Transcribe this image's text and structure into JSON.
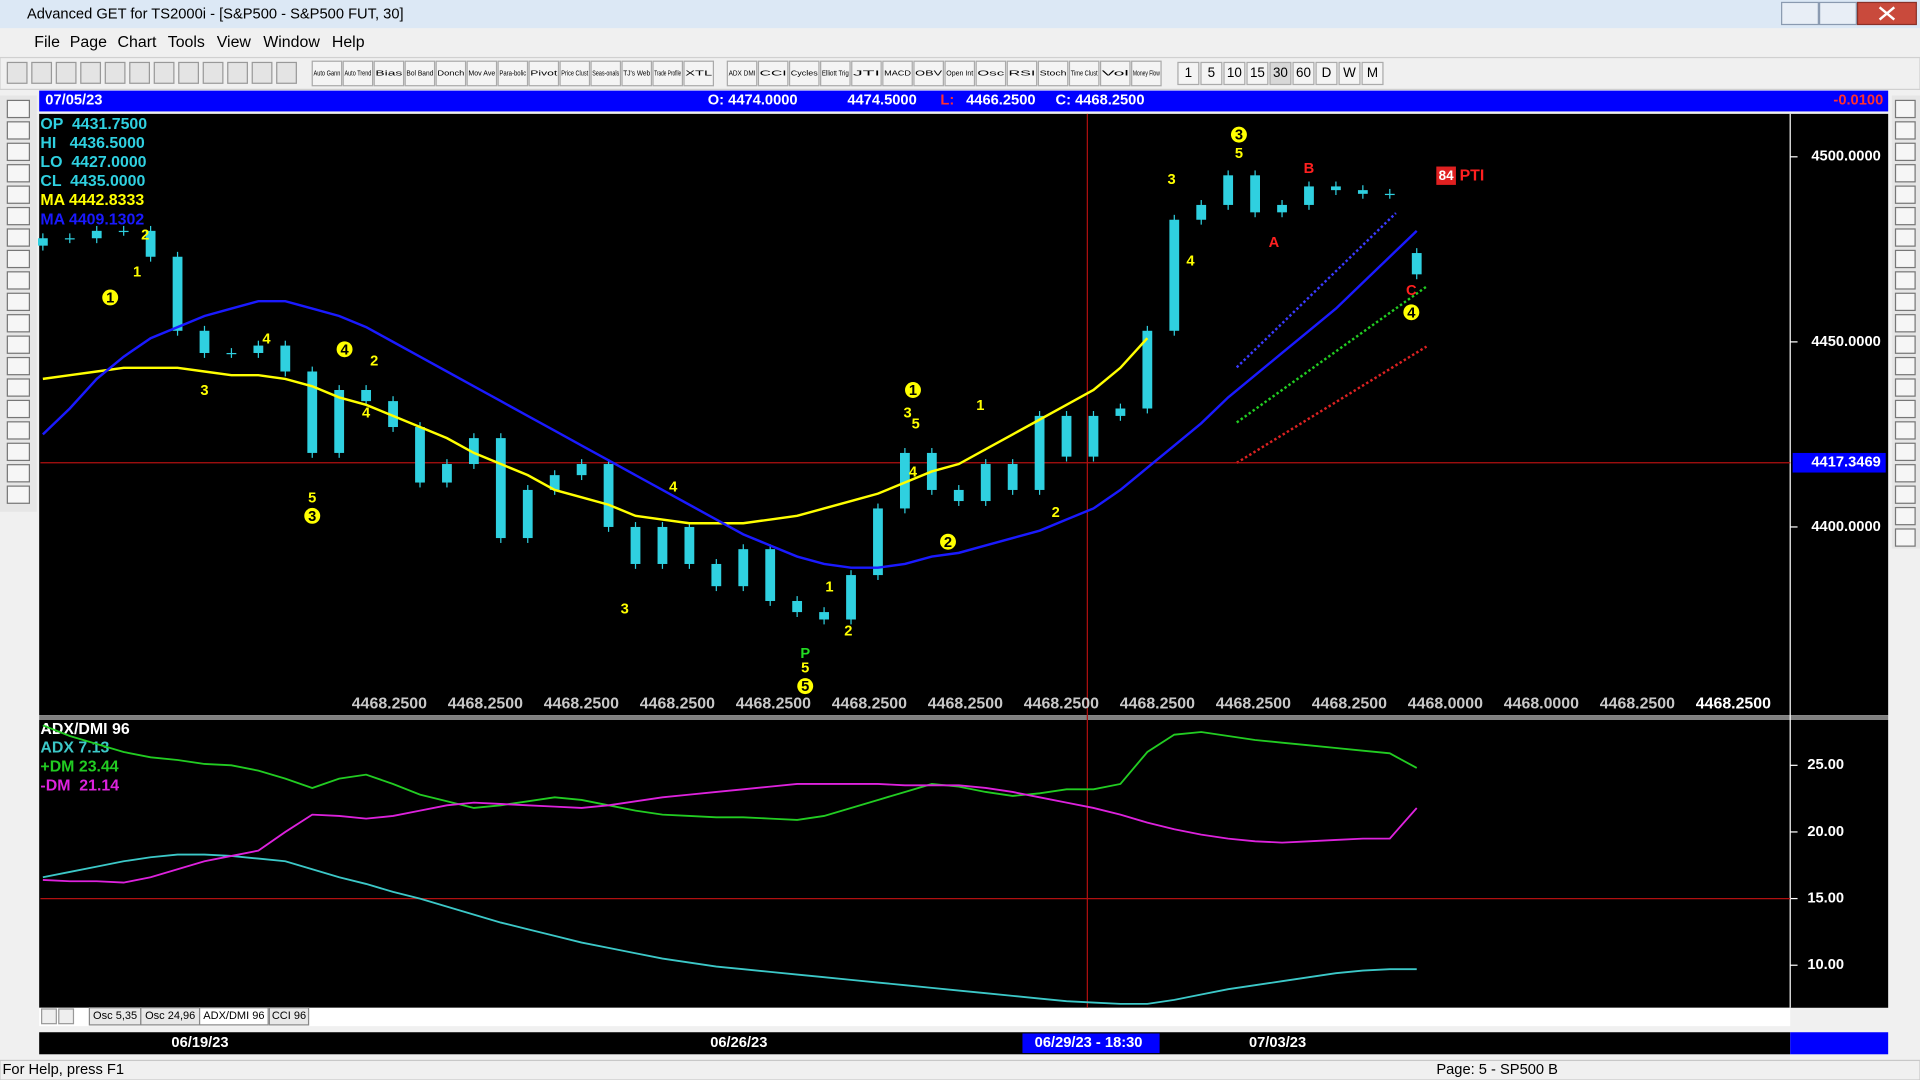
{
  "window": {
    "title": "Advanced GET for TS2000i - [S&P500 - S&P500 FUT, 30]"
  },
  "menu": [
    "File",
    "Page",
    "Chart",
    "Tools",
    "View",
    "Window",
    "Help"
  ],
  "toolbar": [
    "Auto Gann",
    "Auto Trend",
    "Bias",
    "Bol Band",
    "Donch",
    "Mov Ave",
    "Para-bolic",
    "Pivot",
    "Price Clust",
    "Seas-onals",
    "TJ's Web",
    "Trade Profile",
    "XTL",
    "ADX DMI",
    "CCI",
    "Cycles",
    "Elliott Trig",
    "JTI",
    "MACD",
    "OBV",
    "Open Int",
    "Osc",
    "RSI",
    "Stoch",
    "Time Clust",
    "Vol",
    "Money Flow"
  ],
  "intervals": [
    "1",
    "5",
    "10",
    "15",
    "30",
    "60",
    "D",
    "W",
    "M"
  ],
  "infobar": {
    "date": "07/05/23",
    "open": "O: 4474.0000",
    "high": "4474.5000",
    "low_label": "L:",
    "low": "4466.2500",
    "close": "C: 4468.2500",
    "change": "-0.0100"
  },
  "chart_data": [
    {
      "type": "candlestick",
      "color": "#2fd0e0",
      "categories": [
        null,
        null,
        null,
        null,
        null,
        "06/19/23",
        null,
        null,
        null,
        null,
        null,
        null,
        null,
        null,
        null,
        null,
        null,
        null,
        null,
        null,
        null,
        null,
        null,
        null,
        null,
        "06/26/23",
        null,
        null,
        null,
        null,
        null,
        null,
        null,
        null,
        null,
        null,
        null,
        null,
        null,
        "06/29/23 - 18:30",
        null,
        null,
        null,
        null,
        null,
        "07/03/23",
        null,
        null,
        null,
        null,
        null,
        null
      ],
      "open": [
        4476,
        4478,
        4478,
        4480,
        4480,
        4473,
        4453,
        4447,
        4447,
        4449,
        4442,
        4420,
        4437,
        4434,
        4427,
        4412,
        4417,
        4424,
        4397,
        4410,
        4414,
        4417,
        4400,
        4390,
        4400,
        4390,
        4384,
        4394,
        4380,
        4377,
        4375,
        4387,
        4405,
        4420,
        4410,
        4407,
        4417,
        4410,
        4430,
        4419,
        4430,
        4432,
        4453,
        4483,
        4487,
        4495,
        4485,
        4487,
        4492,
        4491,
        4490,
        4474
      ],
      "close": [
        4478,
        4478,
        4480,
        4480,
        4473,
        4453,
        4447,
        4447,
        4449,
        4442,
        4420,
        4437,
        4434,
        4427,
        4412,
        4417,
        4424,
        4397,
        4410,
        4414,
        4417,
        4400,
        4390,
        4400,
        4390,
        4384,
        4394,
        4380,
        4377,
        4375,
        4387,
        4405,
        4420,
        4410,
        4407,
        4417,
        4410,
        4430,
        4419,
        4430,
        4432,
        4453,
        4483,
        4487,
        4495,
        4485,
        4487,
        4492,
        4491,
        4490,
        4490,
        4468.25
      ],
      "series": [
        {
          "name": "MA 4442.8333",
          "color": "#ffff00",
          "values": [
            4440,
            4441,
            4442,
            4443,
            4443,
            4443,
            4442,
            4441,
            4441,
            4440,
            4438,
            4435,
            4433,
            4430,
            4427,
            4424,
            4420,
            4417,
            4414,
            4410,
            4408,
            4406,
            4403,
            4402,
            4401,
            4401,
            4401,
            4402,
            4403,
            4405,
            4407,
            4409,
            4412,
            4415,
            4417,
            4421,
            4425,
            4429,
            4433,
            4437,
            4443,
            4451,
            null,
            null,
            null,
            null,
            null,
            null,
            null,
            null,
            null,
            null
          ]
        },
        {
          "name": "MA 4409.1302",
          "color": "#1a1aff",
          "values": [
            4425,
            4432,
            4440,
            4446,
            4451,
            4454,
            4457,
            4459,
            4461,
            4461,
            4459,
            4457,
            4454,
            4450,
            4446,
            4442,
            4438,
            4434,
            4430,
            4426,
            4422,
            4418,
            4414,
            4410,
            4406,
            4402,
            4398,
            4395,
            4392,
            4390,
            4389,
            4389,
            4390,
            4392,
            4393,
            4395,
            4397,
            4399,
            4402,
            4405,
            4410,
            4416,
            4422,
            4428,
            4435,
            4441,
            4447,
            4453,
            4459,
            4466,
            4473,
            4480
          ]
        }
      ],
      "readouts": [
        "OP  4431.7500",
        "HI   4436.5000",
        "LO  4427.0000",
        "CL  4435.0000"
      ],
      "ylim": [
        4349.5,
        4511.6
      ],
      "yticks": [
        {
          "value": 4400,
          "label": "4400.0000"
        },
        {
          "value": 4450,
          "label": "4450.0000"
        },
        {
          "value": 4500,
          "label": "4500.0000"
        }
      ],
      "cursor": {
        "value": 4417.3469,
        "label": "4417.3469"
      },
      "bottom_values": [
        "4468.2500",
        "4468.2500",
        "4468.2500",
        "4468.2500",
        "4468.2500",
        "4468.2500",
        "4468.2500",
        "4468.2500",
        "4468.2500",
        "4468.2500",
        "4468.2500",
        "4468.0000",
        "4468.0000",
        "4468.2500",
        "4468.2500"
      ],
      "pti_value": 84,
      "pti_label": "PTI",
      "wave_labels": [
        {
          "text": "1",
          "x": 2.5,
          "y": 4462,
          "circled": true
        },
        {
          "text": "2",
          "x": 3.8,
          "y": 4479
        },
        {
          "text": "1",
          "x": 3.5,
          "y": 4469
        },
        {
          "text": "4",
          "x": 8.3,
          "y": 4451
        },
        {
          "text": "3",
          "x": 6.0,
          "y": 4437
        },
        {
          "text": "4",
          "x": 11.2,
          "y": 4448,
          "circled": true
        },
        {
          "text": "2",
          "x": 12.3,
          "y": 4445
        },
        {
          "text": "4",
          "x": 12.0,
          "y": 4431
        },
        {
          "text": "5",
          "x": 10.0,
          "y": 4408
        },
        {
          "text": "3",
          "x": 10.0,
          "y": 4403,
          "circled": true
        },
        {
          "text": "4",
          "x": 23.4,
          "y": 4411
        },
        {
          "text": "3",
          "x": 21.6,
          "y": 4378
        },
        {
          "text": "1",
          "x": 32.3,
          "y": 4437,
          "circled": true
        },
        {
          "text": "3",
          "x": 32.1,
          "y": 4431
        },
        {
          "text": "5",
          "x": 32.4,
          "y": 4428
        },
        {
          "text": "4",
          "x": 32.3,
          "y": 4415
        },
        {
          "text": "1",
          "x": 34.8,
          "y": 4433
        },
        {
          "text": "2",
          "x": 33.6,
          "y": 4396,
          "circled": true
        },
        {
          "text": "2",
          "x": 37.6,
          "y": 4404
        },
        {
          "text": "1",
          "x": 29.2,
          "y": 4384
        },
        {
          "text": "2",
          "x": 29.9,
          "y": 4372
        },
        {
          "text": "P",
          "x": 28.3,
          "y": 4366,
          "color": "#22dd22"
        },
        {
          "text": "5",
          "x": 28.3,
          "y": 4362
        },
        {
          "text": "5",
          "x": 28.3,
          "y": 4357,
          "circled": true
        },
        {
          "text": "3",
          "x": 41.9,
          "y": 4494
        },
        {
          "text": "4",
          "x": 42.6,
          "y": 4472
        },
        {
          "text": "3",
          "x": 44.4,
          "y": 4506,
          "circled": true
        },
        {
          "text": "5",
          "x": 44.4,
          "y": 4501
        },
        {
          "text": "B",
          "x": 47.0,
          "y": 4497,
          "color": "#ff2020"
        },
        {
          "text": "A",
          "x": 45.7,
          "y": 4477,
          "color": "#ff2020"
        },
        {
          "text": "C",
          "x": 50.8,
          "y": 4464,
          "color": "#ff2020"
        },
        {
          "text": "4",
          "x": 50.8,
          "y": 4458,
          "circled": true
        }
      ]
    },
    {
      "type": "line",
      "title": "ADX/DMI 96",
      "series": [
        {
          "name": "ADX 7.13",
          "color": "#3cc8c8",
          "values": [
            16.6,
            17.0,
            17.4,
            17.8,
            18.1,
            18.3,
            18.3,
            18.2,
            18.0,
            17.8,
            17.2,
            16.6,
            16.1,
            15.5,
            15.0,
            14.4,
            13.8,
            13.2,
            12.7,
            12.2,
            11.7,
            11.3,
            10.9,
            10.5,
            10.2,
            9.9,
            9.7,
            9.5,
            9.3,
            9.1,
            8.9,
            8.7,
            8.5,
            8.3,
            8.1,
            7.9,
            7.7,
            7.5,
            7.3,
            7.2,
            7.1,
            7.1,
            7.4,
            7.8,
            8.2,
            8.5,
            8.8,
            9.1,
            9.4,
            9.6,
            9.7,
            9.7
          ]
        },
        {
          "name": "+DM 23.44",
          "color": "#22cc22",
          "values": [
            28.0,
            27.2,
            26.6,
            26.0,
            25.6,
            25.4,
            25.1,
            25.0,
            24.6,
            24.0,
            23.3,
            24.0,
            24.3,
            23.6,
            22.8,
            22.3,
            21.8,
            22.0,
            22.3,
            22.6,
            22.4,
            22.0,
            21.6,
            21.3,
            21.2,
            21.1,
            21.1,
            21.0,
            20.9,
            21.2,
            21.8,
            22.4,
            23.0,
            23.6,
            23.4,
            23.0,
            22.7,
            22.9,
            23.2,
            23.2,
            23.6,
            26.0,
            27.3,
            27.5,
            27.2,
            26.9,
            26.7,
            26.5,
            26.3,
            26.1,
            25.9,
            24.8
          ]
        },
        {
          "name": "-DM  21.14",
          "color": "#dd22dd",
          "values": [
            16.4,
            16.3,
            16.3,
            16.2,
            16.6,
            17.2,
            17.8,
            18.2,
            18.6,
            20.0,
            21.3,
            21.2,
            21.0,
            21.2,
            21.6,
            22.0,
            22.2,
            22.1,
            22.0,
            21.9,
            21.8,
            22.0,
            22.3,
            22.6,
            22.8,
            23.0,
            23.2,
            23.4,
            23.6,
            23.6,
            23.6,
            23.6,
            23.5,
            23.5,
            23.5,
            23.3,
            23.0,
            22.6,
            22.2,
            21.8,
            21.3,
            20.7,
            20.2,
            19.8,
            19.5,
            19.3,
            19.2,
            19.3,
            19.4,
            19.5,
            19.5,
            21.8
          ]
        }
      ],
      "ylim": [
        6.9,
        28.4
      ],
      "yticks": [
        {
          "value": 10,
          "label": "10.00"
        },
        {
          "value": 15,
          "label": "15.00"
        },
        {
          "value": 20,
          "label": "20.00"
        },
        {
          "value": 25,
          "label": "25.00"
        }
      ],
      "hline": 15
    }
  ],
  "tabs": [
    "Osc 5,35",
    "Osc 24,96",
    "ADX/DMI 96",
    "CCI 96"
  ],
  "status": {
    "help": "For Help, press F1",
    "page": "Page: 5 - SP500 B"
  }
}
